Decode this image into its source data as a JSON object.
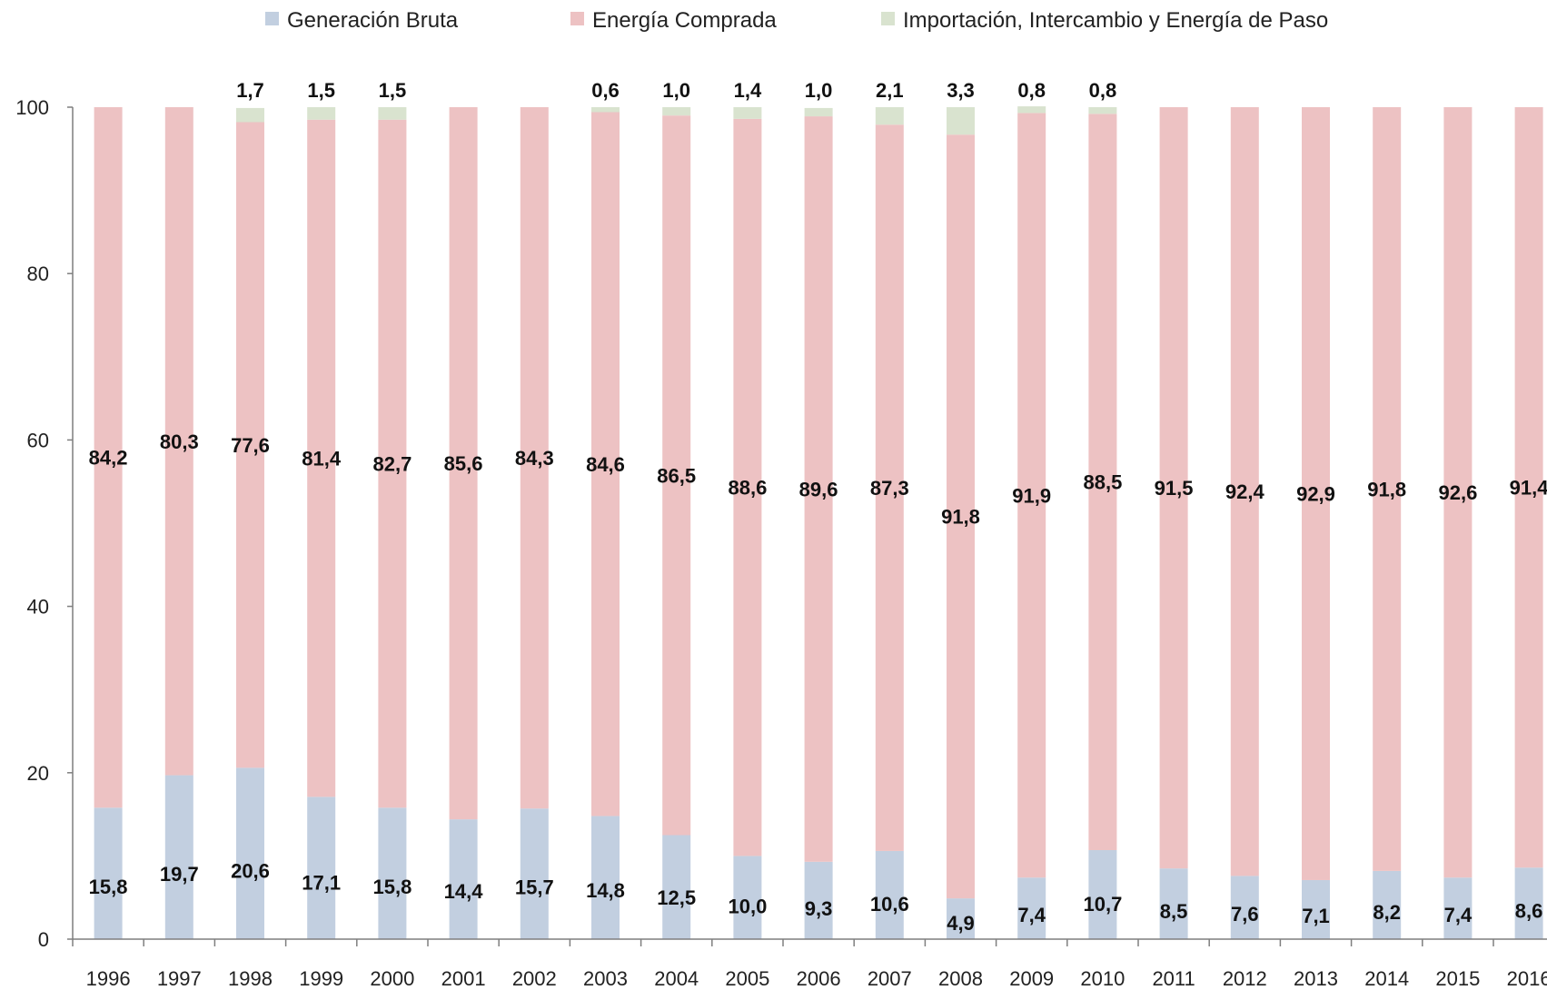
{
  "chart_data": {
    "type": "bar",
    "stacked": true,
    "title": "",
    "xlabel": "",
    "ylabel": "",
    "ylim": [
      0,
      100
    ],
    "yticks": [
      0,
      20,
      40,
      60,
      80,
      100
    ],
    "grid": false,
    "legend_position": "top",
    "categories": [
      "1996",
      "1997",
      "1998",
      "1999",
      "2000",
      "2001",
      "2002",
      "2003",
      "2004",
      "2005",
      "2006",
      "2007",
      "2008",
      "2009",
      "2010",
      "2011",
      "2012",
      "2013",
      "2014",
      "2015",
      "2016"
    ],
    "series": [
      {
        "name": "Generación Bruta",
        "color": "#c2cfe0",
        "values": [
          15.8,
          19.7,
          20.6,
          17.1,
          15.8,
          14.4,
          15.7,
          14.8,
          12.5,
          10.0,
          9.3,
          10.6,
          4.9,
          7.4,
          10.7,
          8.5,
          7.6,
          7.1,
          8.2,
          7.4,
          8.6
        ],
        "labels": [
          "15,8",
          "19,7",
          "20,6",
          "17,1",
          "15,8",
          "14,4",
          "15,7",
          "14,8",
          "12,5",
          "10,0",
          "9,3",
          "10,6",
          "4,9",
          "7,4",
          "10,7",
          "8,5",
          "7,6",
          "7,1",
          "8,2",
          "7,4",
          "8,6"
        ]
      },
      {
        "name": "Energía Comprada",
        "color": "#edc2c3",
        "values": [
          84.2,
          80.3,
          77.6,
          81.4,
          82.7,
          85.6,
          84.3,
          84.6,
          86.5,
          88.6,
          89.6,
          87.3,
          91.8,
          91.9,
          88.5,
          91.5,
          92.4,
          92.9,
          91.8,
          92.6,
          91.4
        ],
        "labels": [
          "84,2",
          "80,3",
          "77,6",
          "81,4",
          "82,7",
          "85,6",
          "84,3",
          "84,6",
          "86,5",
          "88,6",
          "89,6",
          "87,3",
          "91,8",
          "91,9",
          "88,5",
          "91,5",
          "92,4",
          "92,9",
          "91,8",
          "92,6",
          "91,4"
        ]
      },
      {
        "name": "Importación, Intercambio y Energía de Paso",
        "color": "#d9e3cf",
        "values": [
          0.0,
          0.0,
          1.7,
          1.5,
          1.5,
          0.0,
          0.0,
          0.6,
          1.0,
          1.4,
          1.0,
          2.1,
          3.3,
          0.8,
          0.8,
          0.0,
          0.0,
          0.0,
          0.0,
          0.0,
          0.0
        ],
        "labels": [
          "",
          "",
          "1,7",
          "1,5",
          "1,5",
          "",
          "",
          "0,6",
          "1,0",
          "1,4",
          "1,0",
          "2,1",
          "3,3",
          "0,8",
          "0,8",
          "",
          "",
          "",
          "",
          "",
          ""
        ]
      }
    ]
  }
}
